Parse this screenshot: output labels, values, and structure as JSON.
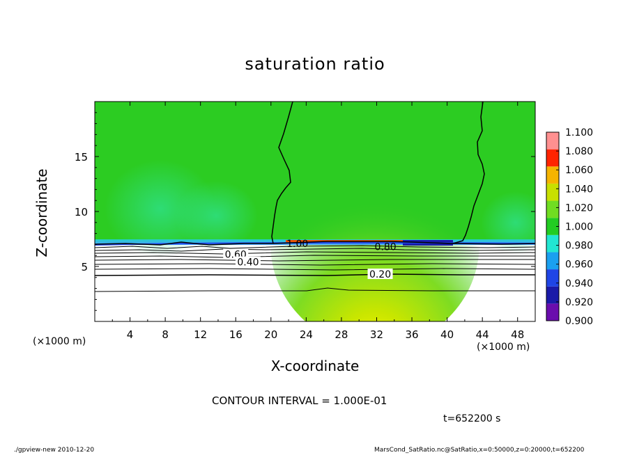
{
  "chart_data": {
    "type": "heatmap",
    "title": "saturation ratio",
    "xlabel": "X-coordinate",
    "ylabel": "Z-coordinate",
    "x_unit": "(×1000 m)",
    "xlim": [
      0,
      50
    ],
    "ylim": [
      0,
      20
    ],
    "x_ticks": [
      "4",
      "8",
      "12",
      "16",
      "20",
      "24",
      "28",
      "32",
      "36",
      "40",
      "44",
      "48"
    ],
    "y_ticks": [
      "5",
      "10",
      "15"
    ],
    "colorbar": {
      "levels": [
        "0.900",
        "0.920",
        "0.940",
        "0.960",
        "0.980",
        "1.000",
        "1.020",
        "1.040",
        "1.060",
        "1.080",
        "1.100"
      ],
      "colors": [
        "#6a0dad",
        "#1a1aa8",
        "#1f45e6",
        "#1aa0f0",
        "#22e6d2",
        "#22cc22",
        "#70dd22",
        "#c8e000",
        "#f5b400",
        "#ff2400",
        "#ff9090"
      ]
    },
    "contour_labels": [
      {
        "text": "1.00",
        "x": 23,
        "z": 7.1
      },
      {
        "text": "0.80",
        "x": 33,
        "z": 6.8
      },
      {
        "text": "0.60",
        "x": 16,
        "z": 6.1
      },
      {
        "text": "0.40",
        "x": 17.4,
        "z": 5.4
      },
      {
        "text": "0.20",
        "x": 32.4,
        "z": 4.3
      }
    ],
    "contour_interval_text": "CONTOUR INTERVAL = 1.000E-01",
    "time_text": "t=652200 s"
  },
  "footer": {
    "left": "./gpview-new   2010-12-20",
    "right": "MarsCond_SatRatio.nc@SatRatio,x=0:50000,z=0:20000,t=652200"
  }
}
